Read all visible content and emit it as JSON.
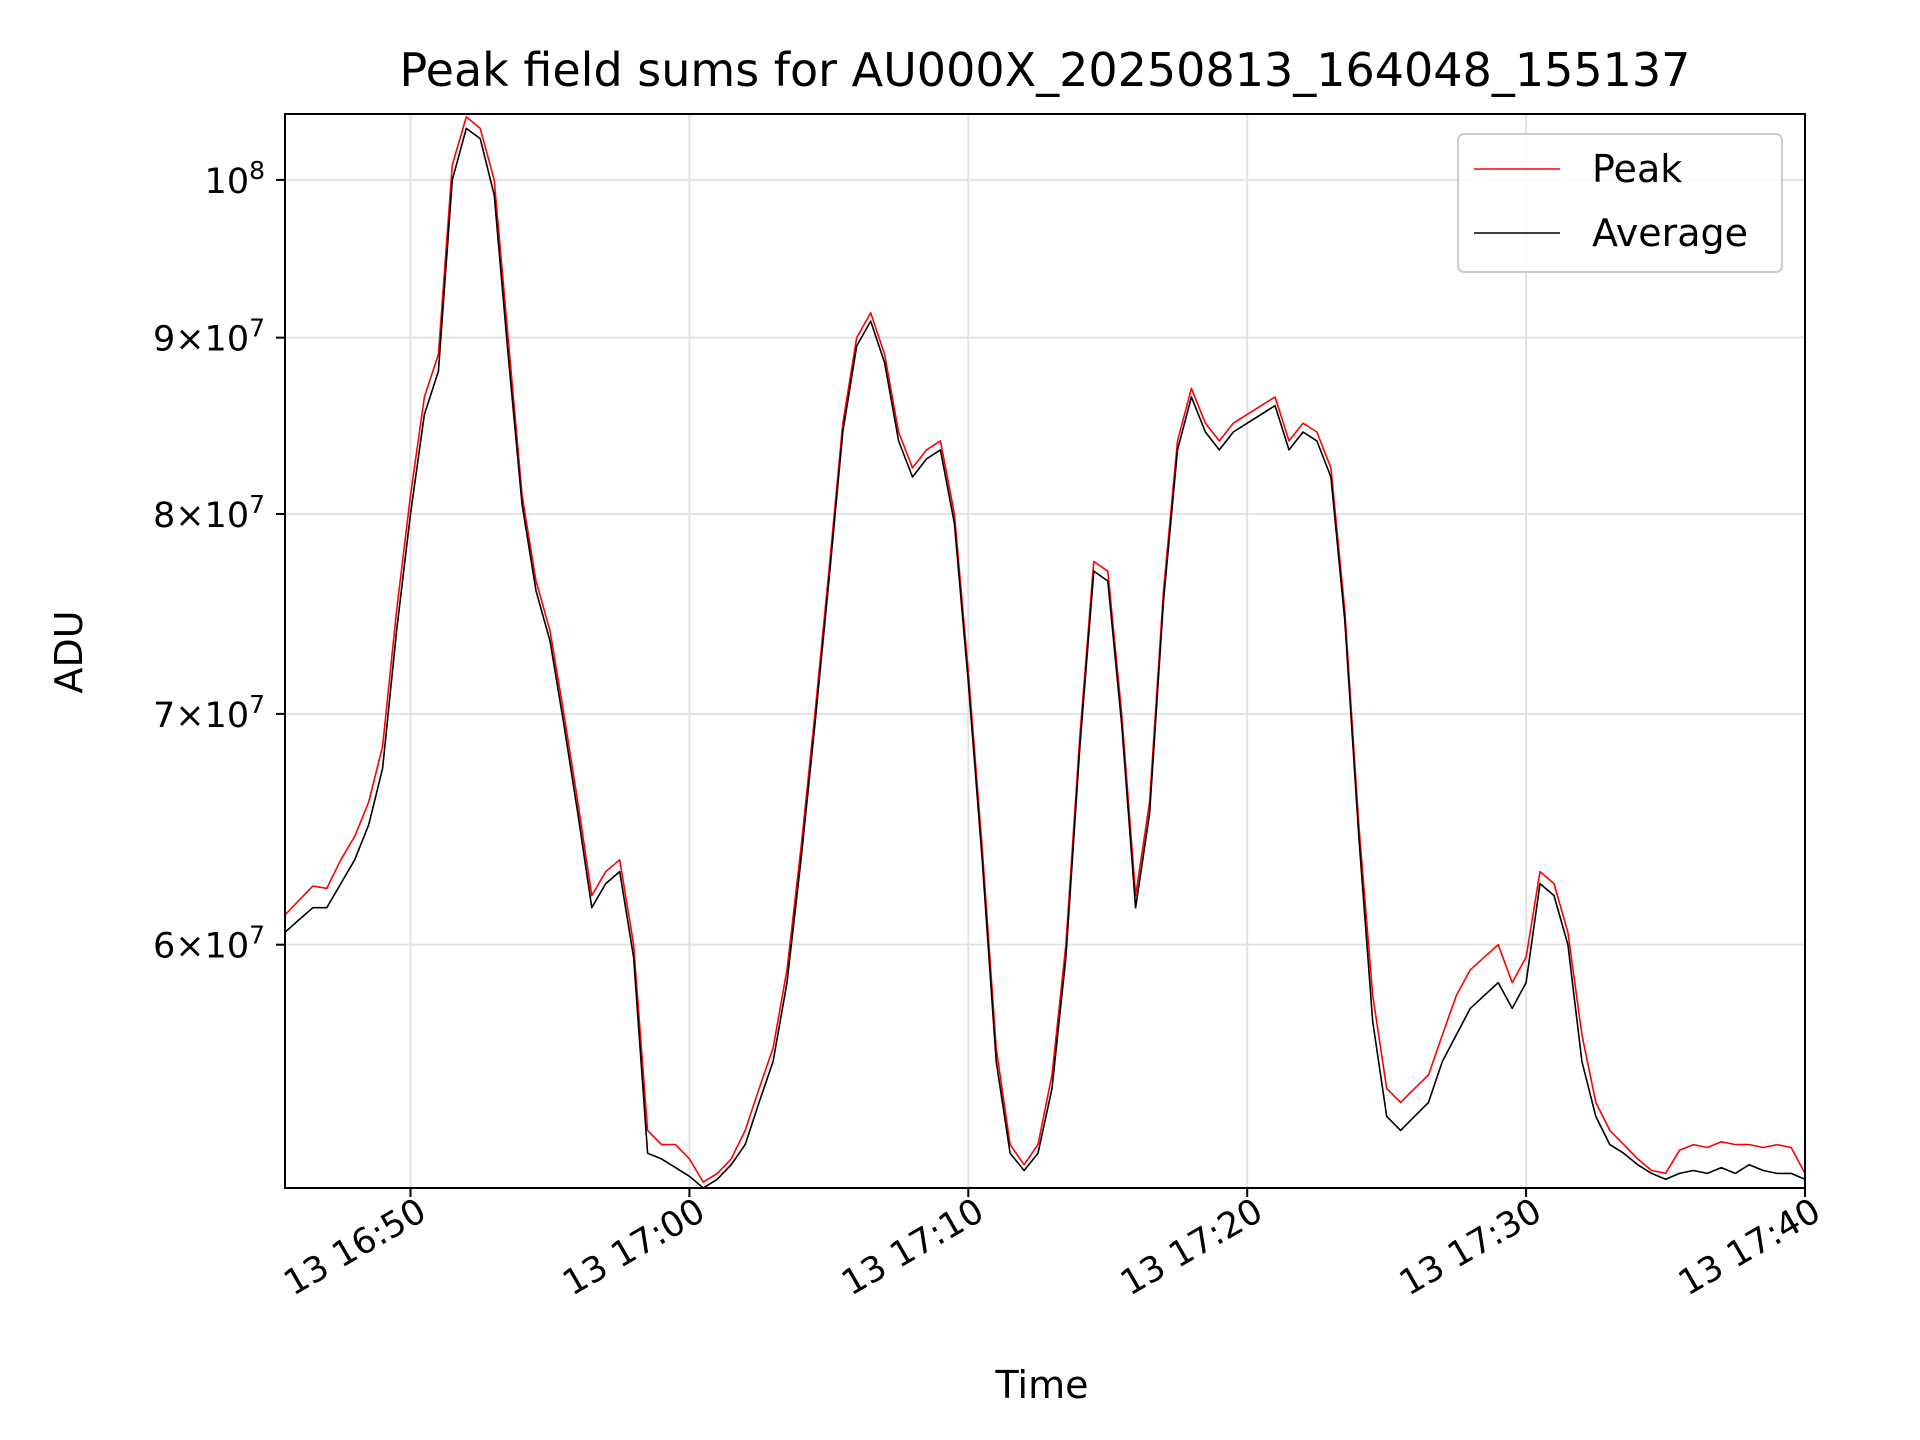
{
  "chart_data": {
    "type": "line",
    "title": "Peak field sums for AU000X_20250813_164048_155137",
    "xlabel": "Time",
    "ylabel": "ADU",
    "y_scale": "log",
    "grid": true,
    "legend_position": "top-right",
    "x_range": [
      "13 16:45:30",
      "13 17:40:00"
    ],
    "y_range": [
      51000000,
      104500000
    ],
    "x_ticks": [
      {
        "time": "16:50",
        "label": "13 16:50"
      },
      {
        "time": "17:00",
        "label": "13 17:00"
      },
      {
        "time": "17:10",
        "label": "13 17:10"
      },
      {
        "time": "17:20",
        "label": "13 17:20"
      },
      {
        "time": "17:30",
        "label": "13 17:30"
      },
      {
        "time": "17:40",
        "label": "13 17:40"
      }
    ],
    "y_ticks": [
      {
        "value": 60000000,
        "base": "6",
        "exp": "7"
      },
      {
        "value": 70000000,
        "base": "7",
        "exp": "7"
      },
      {
        "value": 80000000,
        "base": "8",
        "exp": "7"
      },
      {
        "value": 90000000,
        "base": "9",
        "exp": "7"
      },
      {
        "value": 100000000,
        "base": "10",
        "exp": "8"
      }
    ],
    "series": [
      {
        "name": "Peak",
        "color": "#ff0000",
        "points": [
          [
            "16:45:30",
            61.2
          ],
          [
            "16:46:00",
            61.8
          ],
          [
            "16:46:30",
            62.4
          ],
          [
            "16:47:00",
            62.3
          ],
          [
            "16:47:30",
            63.5
          ],
          [
            "16:48:00",
            64.5
          ],
          [
            "16:48:30",
            66.0
          ],
          [
            "16:49:00",
            68.5
          ],
          [
            "16:49:30",
            75.0
          ],
          [
            "16:50:00",
            81.0
          ],
          [
            "16:50:30",
            86.5
          ],
          [
            "16:51:00",
            89.0
          ],
          [
            "16:51:30",
            101.0
          ],
          [
            "16:52:00",
            104.3
          ],
          [
            "16:52:30",
            103.5
          ],
          [
            "16:53:00",
            100.0
          ],
          [
            "16:53:30",
            90.0
          ],
          [
            "16:54:00",
            81.0
          ],
          [
            "16:54:30",
            76.5
          ],
          [
            "16:55:00",
            74.0
          ],
          [
            "16:55:30",
            70.0
          ],
          [
            "16:56:00",
            66.0
          ],
          [
            "16:56:30",
            62.0
          ],
          [
            "16:57:00",
            63.0
          ],
          [
            "16:57:30",
            63.5
          ],
          [
            "16:58:00",
            60.0
          ],
          [
            "16:58:30",
            53.0
          ],
          [
            "16:59:00",
            52.5
          ],
          [
            "16:59:30",
            52.5
          ],
          [
            "17:00:00",
            52.0
          ],
          [
            "17:00:30",
            51.2
          ],
          [
            "17:01:00",
            51.5
          ],
          [
            "17:01:30",
            52.0
          ],
          [
            "17:02:00",
            53.0
          ],
          [
            "17:02:30",
            54.5
          ],
          [
            "17:03:00",
            56.0
          ],
          [
            "17:03:30",
            59.0
          ],
          [
            "17:04:00",
            64.0
          ],
          [
            "17:04:30",
            70.0
          ],
          [
            "17:05:00",
            77.0
          ],
          [
            "17:05:30",
            85.0
          ],
          [
            "17:06:00",
            90.0
          ],
          [
            "17:06:30",
            91.5
          ],
          [
            "17:07:00",
            89.0
          ],
          [
            "17:07:30",
            84.5
          ],
          [
            "17:08:00",
            82.5
          ],
          [
            "17:08:30",
            83.5
          ],
          [
            "17:09:00",
            84.0
          ],
          [
            "17:09:30",
            80.0
          ],
          [
            "17:10:00",
            72.0
          ],
          [
            "17:10:30",
            64.0
          ],
          [
            "17:11:00",
            56.0
          ],
          [
            "17:11:30",
            52.5
          ],
          [
            "17:12:00",
            51.8
          ],
          [
            "17:12:30",
            52.5
          ],
          [
            "17:13:00",
            55.0
          ],
          [
            "17:13:30",
            60.0
          ],
          [
            "17:14:00",
            69.0
          ],
          [
            "17:14:30",
            77.5
          ],
          [
            "17:15:00",
            77.0
          ],
          [
            "17:15:30",
            70.0
          ],
          [
            "17:16:00",
            62.0
          ],
          [
            "17:16:30",
            66.0
          ],
          [
            "17:17:00",
            76.0
          ],
          [
            "17:17:30",
            84.0
          ],
          [
            "17:18:00",
            87.0
          ],
          [
            "17:18:30",
            85.0
          ],
          [
            "17:19:00",
            84.0
          ],
          [
            "17:19:30",
            85.0
          ],
          [
            "17:20:00",
            85.5
          ],
          [
            "17:20:30",
            86.0
          ],
          [
            "17:21:00",
            86.5
          ],
          [
            "17:21:30",
            84.0
          ],
          [
            "17:22:00",
            85.0
          ],
          [
            "17:22:30",
            84.5
          ],
          [
            "17:23:00",
            82.5
          ],
          [
            "17:23:30",
            75.0
          ],
          [
            "17:24:00",
            65.0
          ],
          [
            "17:24:30",
            58.0
          ],
          [
            "17:25:00",
            54.5
          ],
          [
            "17:25:30",
            54.0
          ],
          [
            "17:26:00",
            54.5
          ],
          [
            "17:26:30",
            55.0
          ],
          [
            "17:27:00",
            56.5
          ],
          [
            "17:27:30",
            58.0
          ],
          [
            "17:28:00",
            59.0
          ],
          [
            "17:28:30",
            59.5
          ],
          [
            "17:29:00",
            60.0
          ],
          [
            "17:29:30",
            58.5
          ],
          [
            "17:30:00",
            59.5
          ],
          [
            "17:30:30",
            63.0
          ],
          [
            "17:31:00",
            62.5
          ],
          [
            "17:31:30",
            60.5
          ],
          [
            "17:32:00",
            56.5
          ],
          [
            "17:32:30",
            54.0
          ],
          [
            "17:33:00",
            53.0
          ],
          [
            "17:33:30",
            52.5
          ],
          [
            "17:34:00",
            52.0
          ],
          [
            "17:34:30",
            51.6
          ],
          [
            "17:35:00",
            51.5
          ],
          [
            "17:35:30",
            52.3
          ],
          [
            "17:36:00",
            52.5
          ],
          [
            "17:36:30",
            52.4
          ],
          [
            "17:37:00",
            52.6
          ],
          [
            "17:37:30",
            52.5
          ],
          [
            "17:38:00",
            52.5
          ],
          [
            "17:38:30",
            52.4
          ],
          [
            "17:39:00",
            52.5
          ],
          [
            "17:39:30",
            52.4
          ],
          [
            "17:40:00",
            51.5
          ]
        ]
      },
      {
        "name": "Average",
        "color": "#000000",
        "points": [
          [
            "16:45:30",
            60.5
          ],
          [
            "16:46:00",
            61.0
          ],
          [
            "16:46:30",
            61.5
          ],
          [
            "16:47:00",
            61.5
          ],
          [
            "16:47:30",
            62.5
          ],
          [
            "16:48:00",
            63.5
          ],
          [
            "16:48:30",
            65.0
          ],
          [
            "16:49:00",
            67.5
          ],
          [
            "16:49:30",
            74.0
          ],
          [
            "16:50:00",
            80.0
          ],
          [
            "16:50:30",
            85.5
          ],
          [
            "16:51:00",
            88.0
          ],
          [
            "16:51:30",
            100.0
          ],
          [
            "16:52:00",
            103.5
          ],
          [
            "16:52:30",
            102.8
          ],
          [
            "16:53:00",
            99.0
          ],
          [
            "16:53:30",
            89.0
          ],
          [
            "16:54:00",
            80.5
          ],
          [
            "16:54:30",
            76.0
          ],
          [
            "16:55:00",
            73.5
          ],
          [
            "16:55:30",
            69.5
          ],
          [
            "16:56:00",
            65.5
          ],
          [
            "16:56:30",
            61.5
          ],
          [
            "16:57:00",
            62.5
          ],
          [
            "16:57:30",
            63.0
          ],
          [
            "16:58:00",
            59.5
          ],
          [
            "16:58:30",
            52.2
          ],
          [
            "16:59:00",
            52.0
          ],
          [
            "16:59:30",
            51.7
          ],
          [
            "17:00:00",
            51.4
          ],
          [
            "17:00:30",
            51.0
          ],
          [
            "17:01:00",
            51.3
          ],
          [
            "17:01:30",
            51.8
          ],
          [
            "17:02:00",
            52.5
          ],
          [
            "17:02:30",
            54.0
          ],
          [
            "17:03:00",
            55.5
          ],
          [
            "17:03:30",
            58.5
          ],
          [
            "17:04:00",
            63.5
          ],
          [
            "17:04:30",
            69.5
          ],
          [
            "17:05:00",
            76.5
          ],
          [
            "17:05:30",
            84.5
          ],
          [
            "17:06:00",
            89.5
          ],
          [
            "17:06:30",
            91.0
          ],
          [
            "17:07:00",
            88.5
          ],
          [
            "17:07:30",
            84.0
          ],
          [
            "17:08:00",
            82.0
          ],
          [
            "17:08:30",
            83.0
          ],
          [
            "17:09:00",
            83.5
          ],
          [
            "17:09:30",
            79.5
          ],
          [
            "17:10:00",
            71.5
          ],
          [
            "17:10:30",
            63.5
          ],
          [
            "17:11:00",
            55.5
          ],
          [
            "17:11:30",
            52.2
          ],
          [
            "17:12:00",
            51.6
          ],
          [
            "17:12:30",
            52.2
          ],
          [
            "17:13:00",
            54.5
          ],
          [
            "17:13:30",
            59.5
          ],
          [
            "17:14:00",
            68.5
          ],
          [
            "17:14:30",
            77.0
          ],
          [
            "17:15:00",
            76.5
          ],
          [
            "17:15:30",
            69.5
          ],
          [
            "17:16:00",
            61.5
          ],
          [
            "17:16:30",
            65.5
          ],
          [
            "17:17:00",
            75.5
          ],
          [
            "17:17:30",
            83.5
          ],
          [
            "17:18:00",
            86.5
          ],
          [
            "17:18:30",
            84.5
          ],
          [
            "17:19:00",
            83.5
          ],
          [
            "17:19:30",
            84.5
          ],
          [
            "17:20:00",
            85.0
          ],
          [
            "17:20:30",
            85.5
          ],
          [
            "17:21:00",
            86.0
          ],
          [
            "17:21:30",
            83.5
          ],
          [
            "17:22:00",
            84.5
          ],
          [
            "17:22:30",
            84.0
          ],
          [
            "17:23:00",
            82.0
          ],
          [
            "17:23:30",
            74.5
          ],
          [
            "17:24:00",
            64.5
          ],
          [
            "17:24:30",
            57.0
          ],
          [
            "17:25:00",
            53.5
          ],
          [
            "17:25:30",
            53.0
          ],
          [
            "17:26:00",
            53.5
          ],
          [
            "17:26:30",
            54.0
          ],
          [
            "17:27:00",
            55.5
          ],
          [
            "17:27:30",
            56.5
          ],
          [
            "17:28:00",
            57.5
          ],
          [
            "17:28:30",
            58.0
          ],
          [
            "17:29:00",
            58.5
          ],
          [
            "17:29:30",
            57.5
          ],
          [
            "17:30:00",
            58.5
          ],
          [
            "17:30:30",
            62.5
          ],
          [
            "17:31:00",
            62.0
          ],
          [
            "17:31:30",
            60.0
          ],
          [
            "17:32:00",
            55.5
          ],
          [
            "17:32:30",
            53.5
          ],
          [
            "17:33:00",
            52.5
          ],
          [
            "17:33:30",
            52.2
          ],
          [
            "17:34:00",
            51.8
          ],
          [
            "17:34:30",
            51.5
          ],
          [
            "17:35:00",
            51.3
          ],
          [
            "17:35:30",
            51.5
          ],
          [
            "17:36:00",
            51.6
          ],
          [
            "17:36:30",
            51.5
          ],
          [
            "17:37:00",
            51.7
          ],
          [
            "17:37:30",
            51.5
          ],
          [
            "17:38:00",
            51.8
          ],
          [
            "17:38:30",
            51.6
          ],
          [
            "17:39:00",
            51.5
          ],
          [
            "17:39:30",
            51.5
          ],
          [
            "17:40:00",
            51.3
          ]
        ]
      }
    ],
    "y_value_unit": "×10^6 ADU"
  }
}
